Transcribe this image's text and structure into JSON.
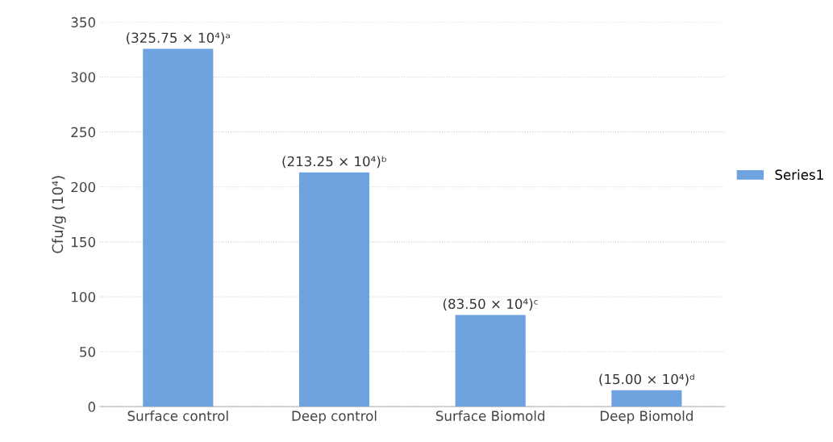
{
  "chart_data": {
    "type": "bar",
    "ylabel": "Cfu/g (10⁴)",
    "categories": [
      "Surface control",
      "Deep control",
      "Surface Biomold",
      "Deep Biomold"
    ],
    "series": [
      {
        "name": "Series1",
        "color": "#6fa3e0",
        "values": [
          325.75,
          213.25,
          83.5,
          15.0
        ],
        "value_labels": [
          "(325.75 × 10⁴)ᵃ",
          "(213.25 × 10⁴)ᵇ",
          "(83.50 × 10⁴)ᶜ",
          "(15.00 × 10⁴)ᵈ"
        ]
      }
    ],
    "ylim": [
      0,
      350
    ],
    "yticks": [
      0,
      50,
      100,
      150,
      200,
      250,
      300,
      350
    ],
    "grid": "y",
    "legend": "right"
  }
}
